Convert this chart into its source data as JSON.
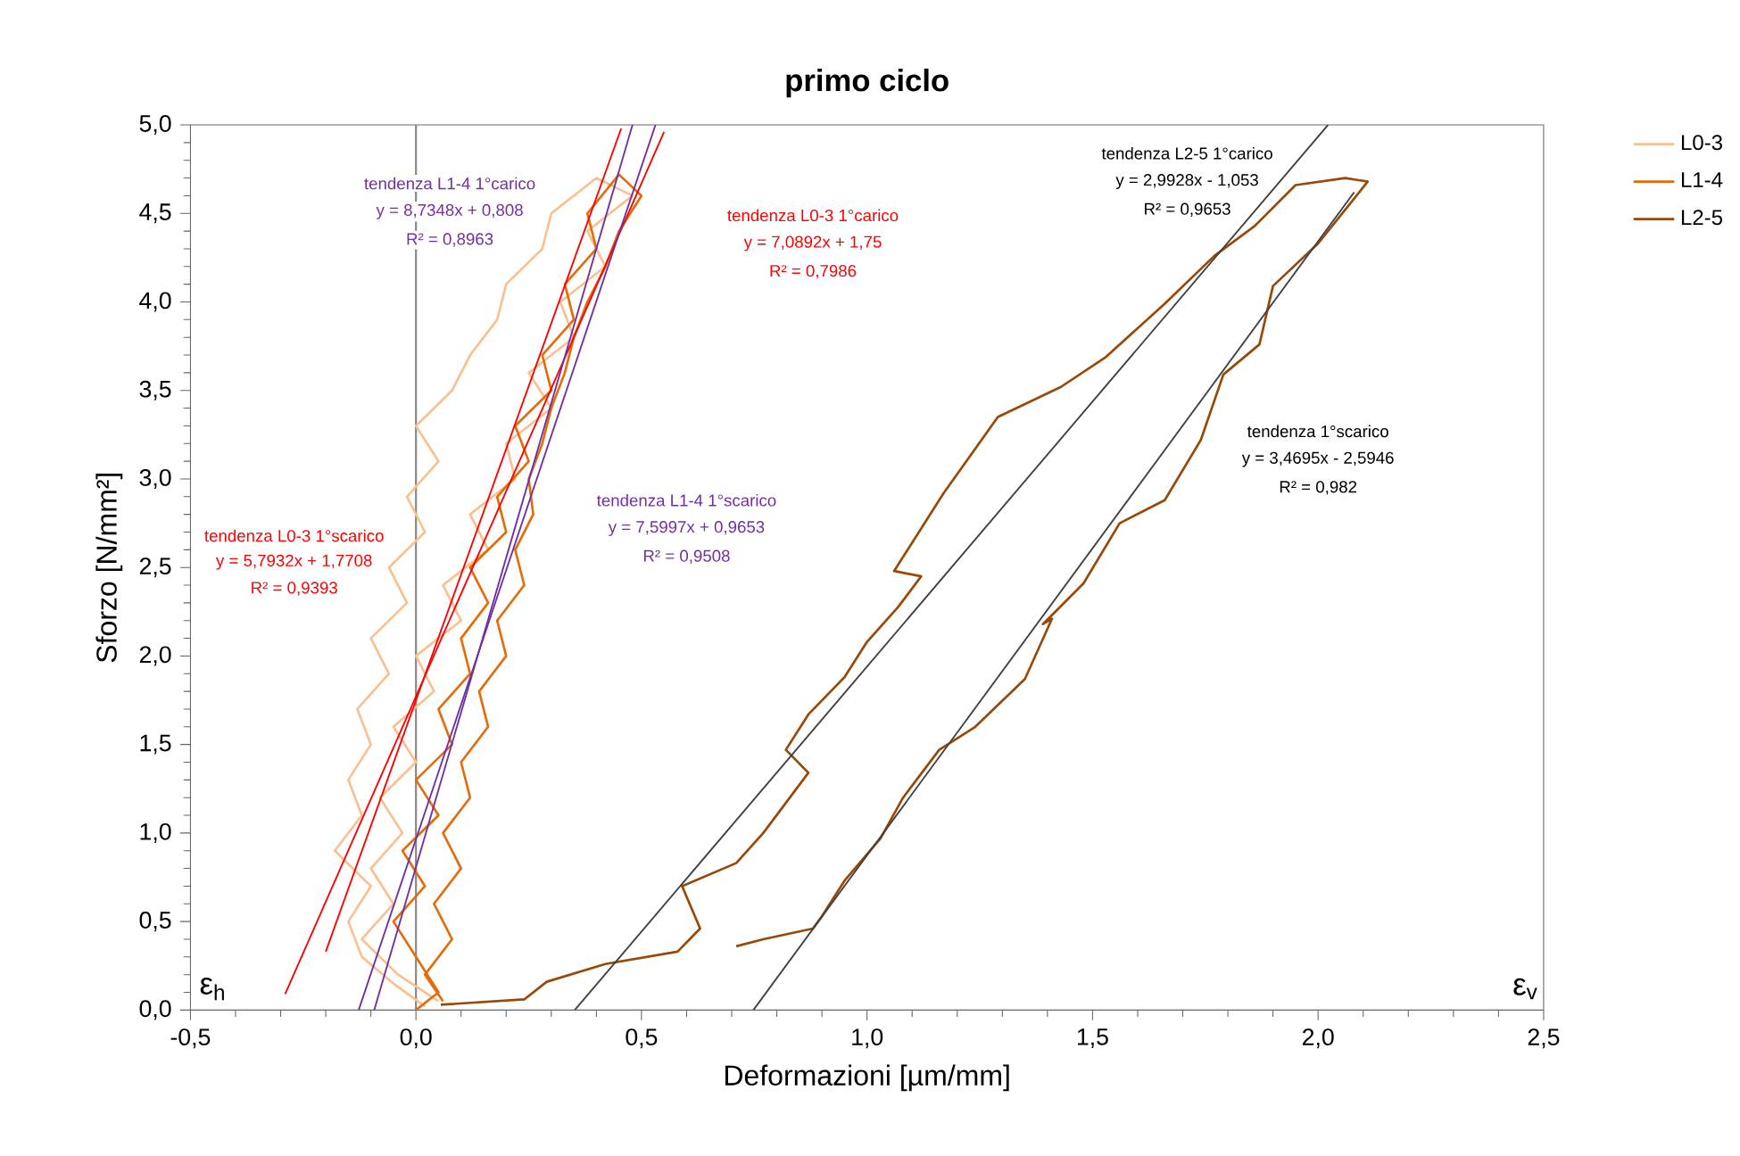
{
  "chart_data": {
    "type": "line",
    "title": "primo ciclo",
    "xlabel": "Deformazioni [µm/mm]",
    "ylabel": "Sforzo [N/mm²]",
    "xlim": [
      -0.5,
      2.5
    ],
    "ylim": [
      0,
      5
    ],
    "xticks": [
      {
        "value": -0.5,
        "label": "-0,5"
      },
      {
        "value": 0,
        "label": "0,0"
      },
      {
        "value": 0.5,
        "label": "0,5"
      },
      {
        "value": 1,
        "label": "1,0"
      },
      {
        "value": 1.5,
        "label": "1,5"
      },
      {
        "value": 2,
        "label": "2,0"
      },
      {
        "value": 2.5,
        "label": "2,5"
      }
    ],
    "yticks": [
      {
        "value": 0,
        "label": "0,0"
      },
      {
        "value": 0.5,
        "label": "0,5"
      },
      {
        "value": 1,
        "label": "1,0"
      },
      {
        "value": 1.5,
        "label": "1,5"
      },
      {
        "value": 2,
        "label": "2,0"
      },
      {
        "value": 2.5,
        "label": "2,5"
      },
      {
        "value": 3,
        "label": "3,0"
      },
      {
        "value": 3.5,
        "label": "3,5"
      },
      {
        "value": 4,
        "label": "4,0"
      },
      {
        "value": 4.5,
        "label": "4,5"
      },
      {
        "value": 5,
        "label": "5,0"
      }
    ],
    "legend": "right",
    "grid": false,
    "ref_lines": [
      {
        "axis": "x",
        "value": 0,
        "color": "#868686"
      }
    ],
    "annotations": [
      "tendenza L1-4 1°carico",
      "y = 8,7348x + 0,808",
      "R² = 0,8963",
      "tendenza L0-3 1°carico",
      "y = 7,0892x + 1,75",
      "R² = 0,7986",
      "tendenza L2-5 1°carico",
      "y = 2,9928x - 1,053",
      "R² = 0,9653",
      "tendenza L0-3 1°scarico",
      "y = 5,7932x + 1,7708",
      "R² = 0,9393",
      "tendenza L1-4 1°scarico",
      "y = 7,5997x + 0,9653",
      "R² = 0,9508",
      "tendenza 1°scarico",
      "y = 3,4695x - 2,5946",
      "R² = 0,982",
      "ε$_{h}$",
      "ε$_{v}$"
    ],
    "series": [
      {
        "name": "L0-3",
        "color": "#fac090",
        "x": [
          0.02,
          -0.05,
          -0.12,
          -0.15,
          -0.1,
          -0.18,
          -0.12,
          -0.15,
          -0.1,
          -0.13,
          -0.06,
          -0.1,
          -0.02,
          -0.06,
          0.02,
          -0.02,
          0.05,
          0.0,
          0.08,
          0.12,
          0.18,
          0.2,
          0.28,
          0.3,
          0.4,
          0.48,
          0.38,
          0.42,
          0.32,
          0.35,
          0.25,
          0.3,
          0.2,
          0.22,
          0.12,
          0.16,
          0.06,
          0.1,
          0.0,
          0.04,
          -0.05,
          0.0,
          -0.08,
          -0.03,
          -0.1,
          -0.05,
          -0.12,
          -0.04,
          0.05
        ],
        "values": [
          0.02,
          0.15,
          0.3,
          0.5,
          0.7,
          0.9,
          1.1,
          1.3,
          1.5,
          1.7,
          1.9,
          2.1,
          2.3,
          2.5,
          2.7,
          2.9,
          3.1,
          3.3,
          3.5,
          3.7,
          3.9,
          4.1,
          4.3,
          4.5,
          4.7,
          4.6,
          4.4,
          4.2,
          4.0,
          3.8,
          3.6,
          3.4,
          3.2,
          3.0,
          2.8,
          2.6,
          2.4,
          2.2,
          2.0,
          1.8,
          1.6,
          1.4,
          1.2,
          1.0,
          0.8,
          0.6,
          0.4,
          0.2,
          0.05
        ]
      },
      {
        "name": "L1-4",
        "color": "#e46c0a",
        "x": [
          0.0,
          0.05,
          0.0,
          -0.05,
          0.02,
          -0.03,
          0.05,
          0.0,
          0.08,
          0.05,
          0.12,
          0.1,
          0.16,
          0.12,
          0.2,
          0.18,
          0.25,
          0.22,
          0.3,
          0.28,
          0.35,
          0.33,
          0.4,
          0.38,
          0.45,
          0.5,
          0.45,
          0.42,
          0.38,
          0.35,
          0.33,
          0.3,
          0.28,
          0.25,
          0.26,
          0.22,
          0.24,
          0.18,
          0.2,
          0.14,
          0.16,
          0.1,
          0.12,
          0.06,
          0.1,
          0.04,
          0.08,
          0.02,
          0.06
        ],
        "values": [
          0.0,
          0.1,
          0.3,
          0.5,
          0.7,
          0.9,
          1.1,
          1.3,
          1.5,
          1.7,
          1.9,
          2.1,
          2.3,
          2.5,
          2.7,
          2.9,
          3.1,
          3.3,
          3.5,
          3.7,
          3.9,
          4.1,
          4.3,
          4.5,
          4.72,
          4.6,
          4.4,
          4.2,
          4.0,
          3.8,
          3.6,
          3.4,
          3.2,
          3.0,
          2.8,
          2.6,
          2.4,
          2.2,
          2.0,
          1.8,
          1.6,
          1.4,
          1.2,
          1.0,
          0.8,
          0.6,
          0.4,
          0.2,
          0.05
        ]
      },
      {
        "name": "L2-5",
        "color": "#984807",
        "x": [
          0.055,
          0.24,
          0.29,
          0.42,
          0.58,
          0.63,
          0.59,
          0.71,
          0.77,
          0.82,
          0.87,
          0.82,
          0.87,
          0.95,
          1.0,
          1.07,
          1.12,
          1.06,
          1.17,
          1.29,
          1.43,
          1.53,
          1.66,
          1.77,
          1.86,
          1.95,
          2.06,
          2.11,
          2.0,
          1.9,
          1.87,
          1.79,
          1.74,
          1.66,
          1.56,
          1.48,
          1.39,
          1.41,
          1.35,
          1.24,
          1.16,
          1.08,
          1.03,
          0.95,
          0.9,
          0.88,
          0.77,
          0.71
        ],
        "values": [
          0.03,
          0.06,
          0.16,
          0.26,
          0.33,
          0.46,
          0.7,
          0.83,
          1.0,
          1.17,
          1.34,
          1.47,
          1.67,
          1.88,
          2.08,
          2.28,
          2.45,
          2.48,
          2.92,
          3.35,
          3.52,
          3.69,
          3.99,
          4.26,
          4.43,
          4.66,
          4.7,
          4.68,
          4.33,
          4.09,
          3.76,
          3.59,
          3.22,
          2.88,
          2.75,
          2.41,
          2.18,
          2.21,
          1.87,
          1.6,
          1.47,
          1.2,
          0.97,
          0.73,
          0.53,
          0.46,
          0.4,
          0.36
        ]
      },
      {
        "type": "line",
        "color": "#ff0000",
        "x": [
          -0.2,
          0.455
        ],
        "values": [
          0.33,
          4.98
        ]
      },
      {
        "type": "line",
        "color": "#ff0000",
        "x": [
          -0.29,
          0.55
        ],
        "values": [
          0.09,
          4.96
        ]
      },
      {
        "type": "line",
        "color": "#7030a0",
        "x": [
          -0.0925,
          0.48
        ],
        "values": [
          0.0,
          5.0
        ]
      },
      {
        "type": "line",
        "color": "#7030a0",
        "x": [
          -0.127,
          0.531
        ],
        "values": [
          0.0,
          5.0
        ]
      },
      {
        "type": "line",
        "color": "#404040",
        "x": [
          0.352,
          2.022
        ],
        "values": [
          0.0,
          5.0
        ]
      },
      {
        "type": "line",
        "color": "#404040",
        "x": [
          0.748,
          2.08
        ],
        "values": [
          0.0,
          4.62
        ]
      }
    ]
  }
}
